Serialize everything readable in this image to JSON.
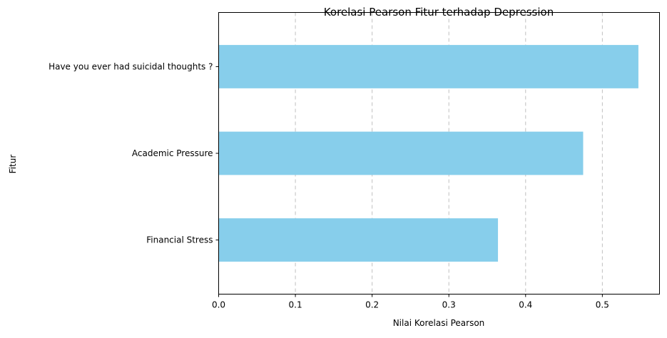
{
  "chart_data": {
    "type": "bar",
    "orientation": "horizontal",
    "title": "Korelasi Pearson Fitur terhadap Depression",
    "xlabel": "Nilai Korelasi Pearson",
    "ylabel": "Fitur",
    "categories": [
      "Have you ever had suicidal thoughts ?",
      "Academic Pressure",
      "Financial Stress"
    ],
    "values": [
      0.547,
      0.475,
      0.364
    ],
    "xlim": [
      0,
      0.5745
    ],
    "xticks": [
      "0.0",
      "0.1",
      "0.2",
      "0.3",
      "0.4",
      "0.5"
    ],
    "grid": "x-dashed",
    "bar_color": "#87CEEB"
  }
}
